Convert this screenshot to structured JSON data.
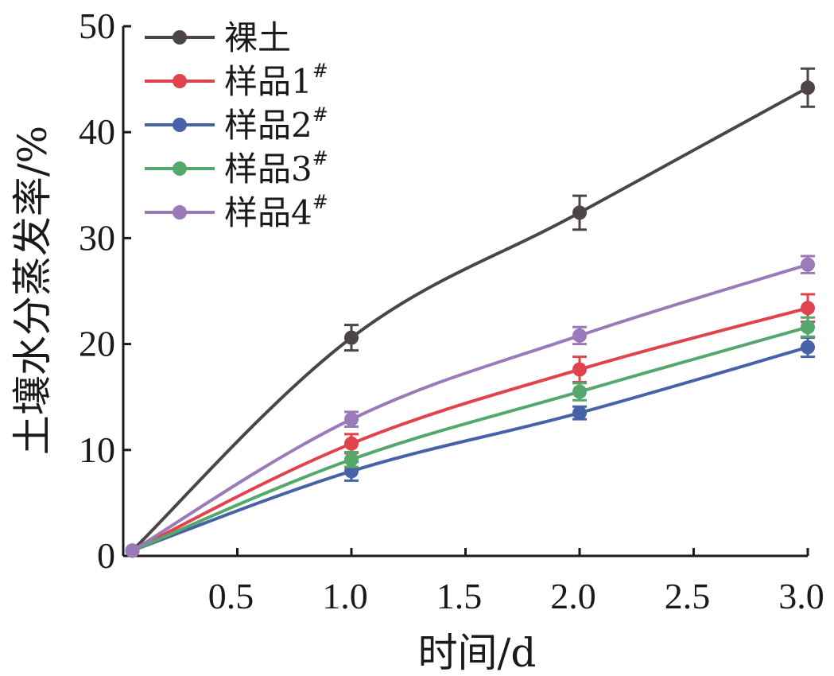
{
  "chart_data": {
    "type": "line",
    "xlabel": "时间/d",
    "ylabel": "土壤水分蒸发率/%",
    "xlim": [
      0,
      3.0
    ],
    "ylim": [
      0,
      50
    ],
    "x_ticks": [
      "0.5",
      "1.0",
      "1.5",
      "2.0",
      "2.5",
      "3.0"
    ],
    "y_ticks": [
      "0",
      "10",
      "20",
      "30",
      "40",
      "50"
    ],
    "grid": false,
    "legend_position": "top-left",
    "x": [
      0,
      1.0,
      2.0,
      3.0
    ],
    "series": [
      {
        "name": "裸土",
        "sup": "",
        "color": "#4d4545",
        "values": [
          0.5,
          20.6,
          32.4,
          44.2
        ],
        "errors": [
          0.2,
          1.2,
          1.6,
          1.8
        ]
      },
      {
        "name": "样品1",
        "sup": "#",
        "color": "#e0434d",
        "values": [
          0.5,
          10.6,
          17.6,
          23.4
        ],
        "errors": [
          0.2,
          0.9,
          1.2,
          1.3
        ]
      },
      {
        "name": "样品2",
        "sup": "#",
        "color": "#4762a6",
        "values": [
          0.5,
          8.0,
          13.5,
          19.7
        ],
        "errors": [
          0.2,
          0.9,
          0.6,
          0.9
        ]
      },
      {
        "name": "样品3",
        "sup": "#",
        "color": "#55a86c",
        "values": [
          0.5,
          9.1,
          15.5,
          21.6
        ],
        "errors": [
          0.2,
          0.7,
          0.8,
          0.9
        ]
      },
      {
        "name": "样品4",
        "sup": "#",
        "color": "#9b7ab9",
        "values": [
          0.5,
          12.9,
          20.8,
          27.5
        ],
        "errors": [
          0.2,
          0.7,
          0.8,
          0.8
        ]
      }
    ]
  }
}
